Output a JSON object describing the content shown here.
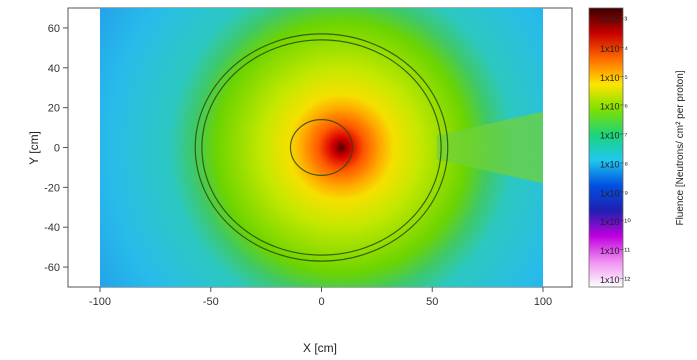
{
  "chart_data": {
    "type": "heatmap",
    "title": "",
    "xlabel": "X [cm]",
    "ylabel": "Y [cm]",
    "xlim": [
      -100,
      100
    ],
    "ylim": [
      -70,
      70
    ],
    "x_ticks": [
      -100,
      -50,
      0,
      50,
      100
    ],
    "y_ticks": [
      -60,
      -40,
      -20,
      0,
      20,
      40,
      60
    ],
    "x_tick_labels": [
      "-100",
      "-50",
      "0",
      "50",
      "100"
    ],
    "y_tick_labels": [
      "-60",
      "-40",
      "-20",
      "0",
      "20",
      "40",
      "60"
    ],
    "colorbar": {
      "label": "Fluence [Neutrons/ cm² per proton]",
      "scale": "log",
      "tick_labels": [
        "1x10⁻³",
        "1x10⁻⁴",
        "1x10⁻⁵",
        "1x10⁻⁶",
        "1x10⁻⁷",
        "1x10⁻⁸",
        "1x10⁻⁹",
        "1x10⁻¹⁰",
        "1x10⁻¹¹",
        "1x10⁻¹²"
      ],
      "colors": [
        "#3a0000",
        "#c80000",
        "#ff6a00",
        "#ffe400",
        "#7fe000",
        "#1bd47a",
        "#20c8f0",
        "#0050e0",
        "#2020b0",
        "#c000e0",
        "#f090f0",
        "#ffffff"
      ]
    },
    "structures": [
      {
        "shape": "circle",
        "center": [
          0,
          0
        ],
        "radius": 57
      },
      {
        "shape": "circle",
        "center": [
          0,
          0
        ],
        "radius": 54
      },
      {
        "shape": "circle",
        "center": [
          0,
          0
        ],
        "radius": 14
      }
    ],
    "hotspot": {
      "center": [
        9,
        0
      ]
    },
    "channel": {
      "x_from": 52,
      "x_to": 100,
      "y_half_width_start": 6,
      "y_half_width_end": 18
    }
  }
}
